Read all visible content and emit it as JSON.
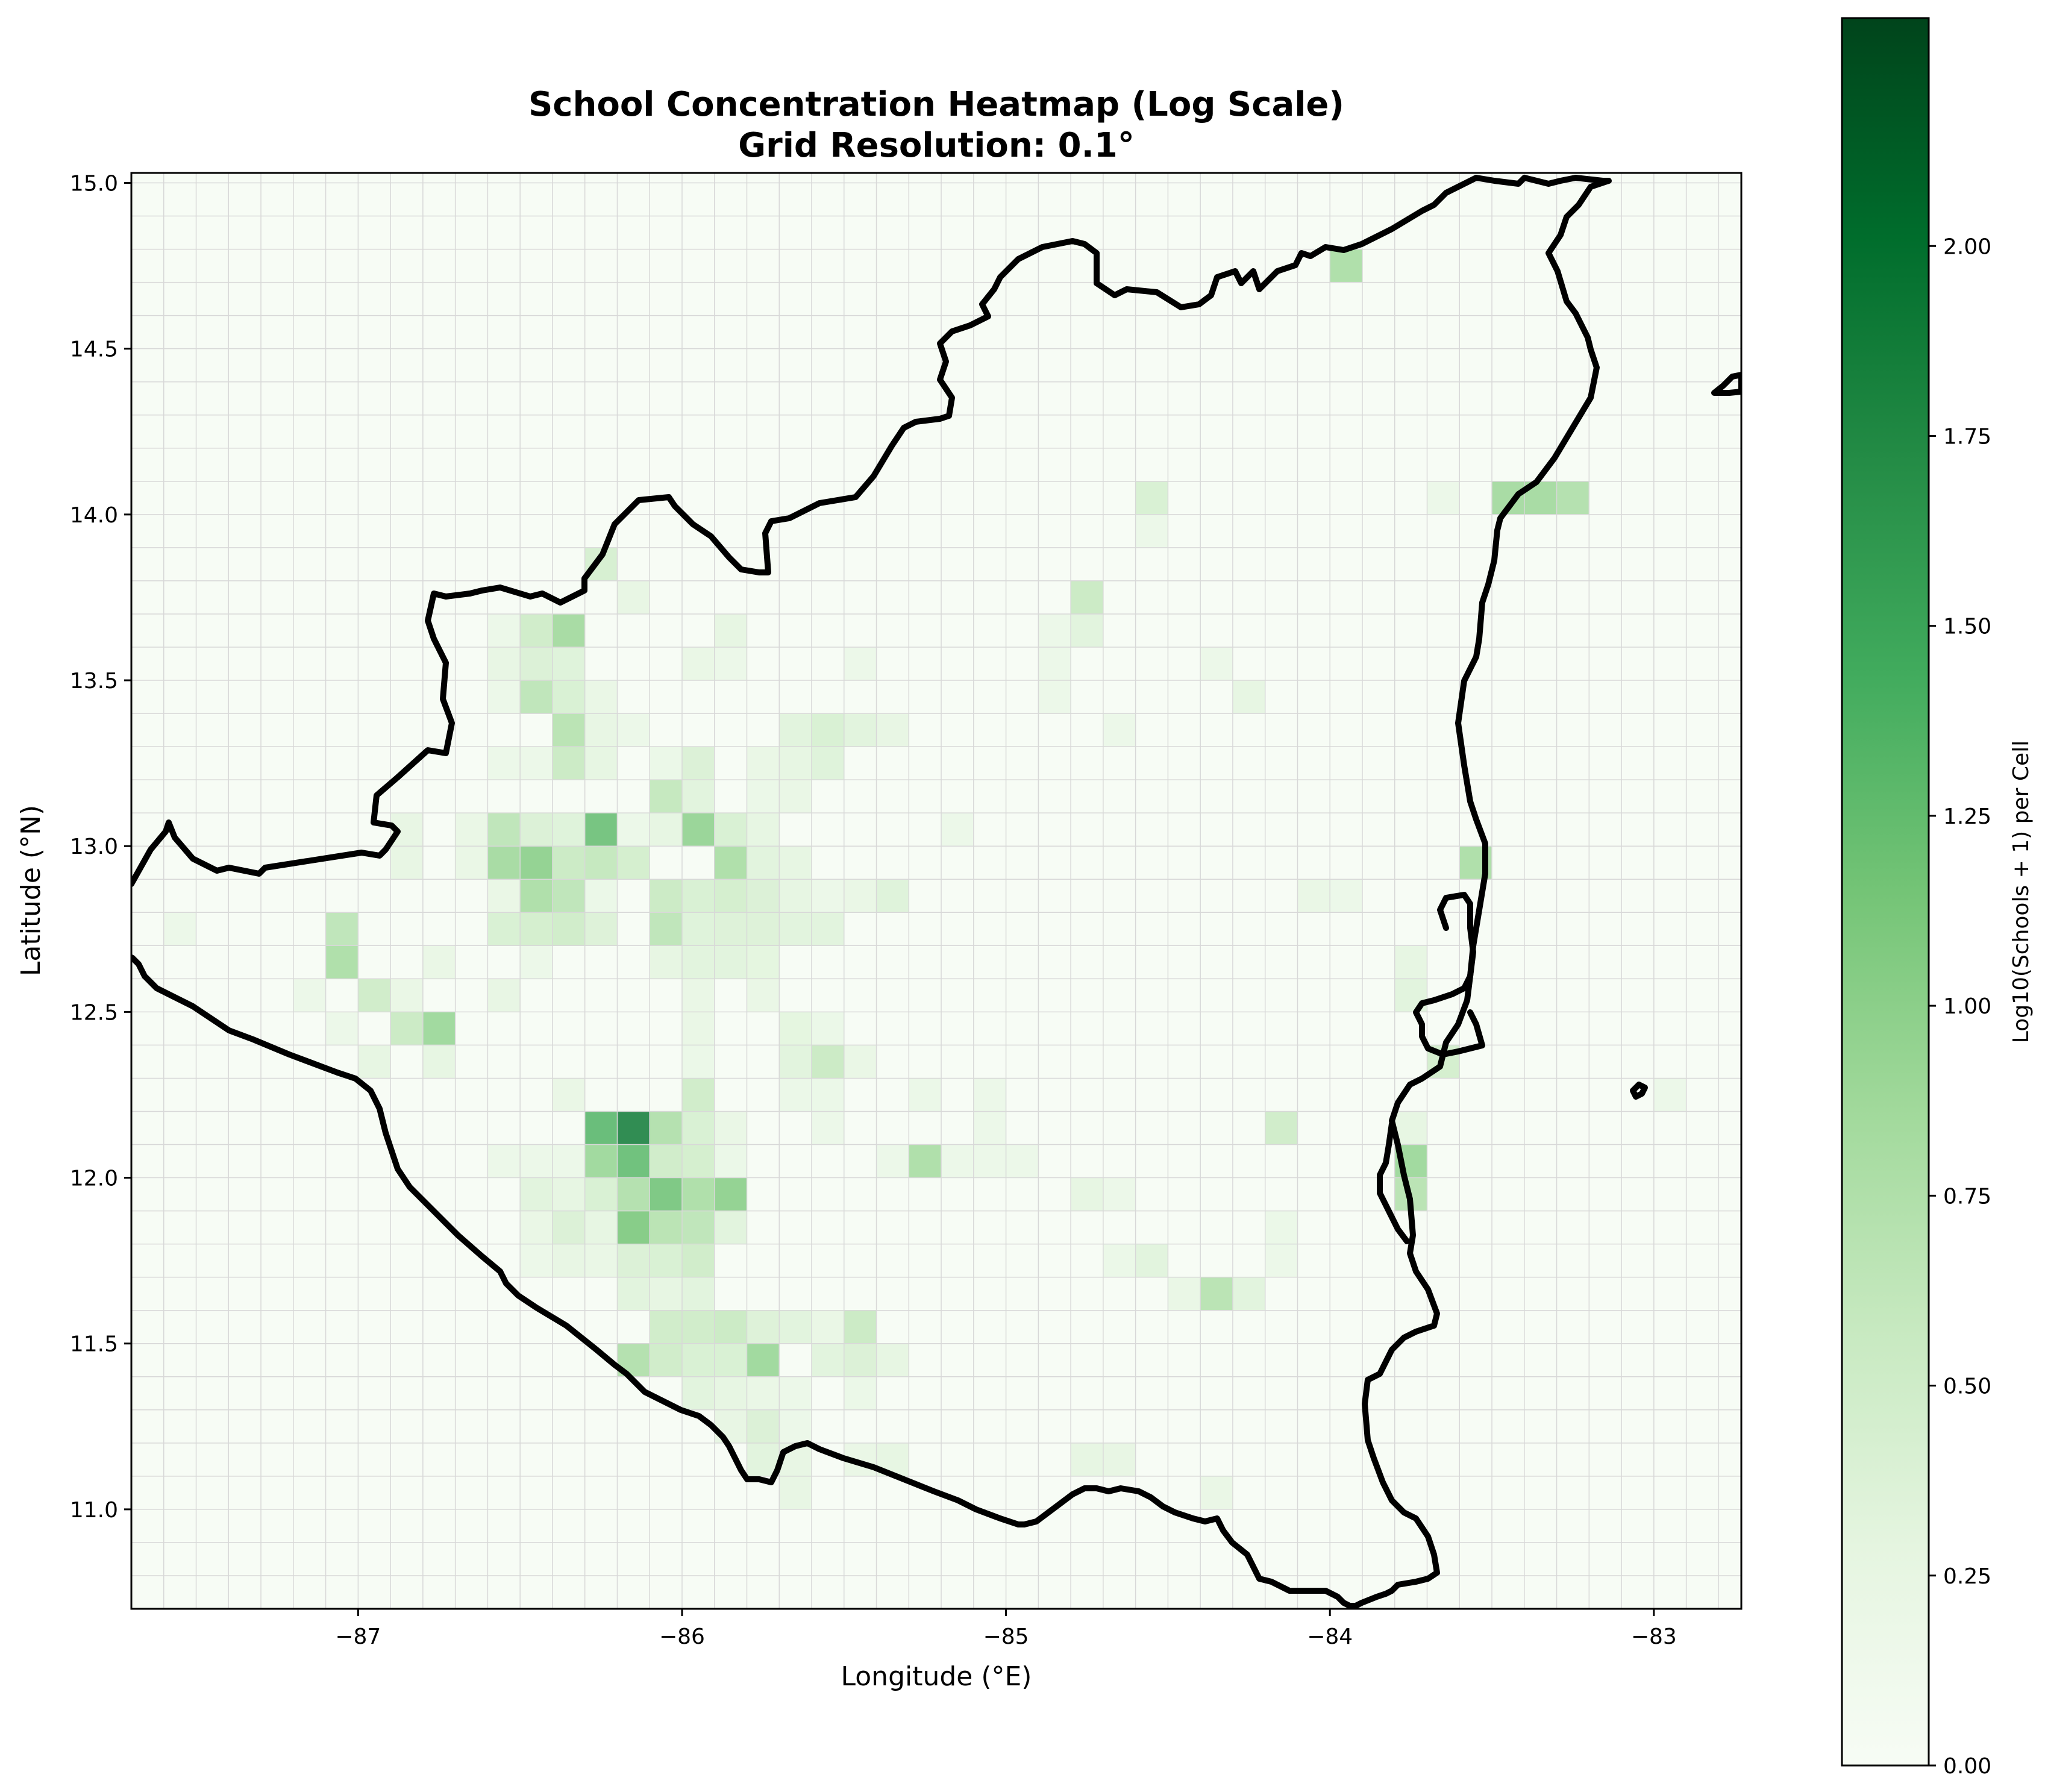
{
  "chart_data": {
    "type": "heatmap",
    "title": "School Concentration Heatmap (Log Scale)",
    "subtitle": "Grid Resolution: 0.1°",
    "xlabel": "Longitude (°E)",
    "ylabel": "Latitude (°N)",
    "xlim": [
      -87.7,
      -82.73
    ],
    "ylim": [
      10.7,
      15.03
    ],
    "x_ticks": [
      -87,
      -86,
      -85,
      -84,
      -83
    ],
    "x_tick_labels": [
      "−87",
      "−86",
      "−85",
      "−84",
      "−83"
    ],
    "y_ticks": [
      11.0,
      11.5,
      12.0,
      12.5,
      13.0,
      13.5,
      14.0,
      14.5,
      15.0
    ],
    "y_tick_labels": [
      "11.0",
      "11.5",
      "12.0",
      "12.5",
      "13.0",
      "13.5",
      "14.0",
      "14.5",
      "15.0"
    ],
    "grid": true,
    "grid_resolution_deg": 0.1,
    "colormap": "Greens",
    "colorbar": {
      "label": "Log10(Schools + 1) per Cell",
      "vmin": 0.0,
      "vmax": 2.3,
      "ticks": [
        0.0,
        0.25,
        0.5,
        0.75,
        1.0,
        1.25,
        1.5,
        1.75,
        2.0
      ],
      "tick_labels": [
        "0.00",
        "0.25",
        "0.50",
        "0.75",
        "1.00",
        "1.25",
        "1.50",
        "1.75",
        "2.00"
      ]
    },
    "cells_note": "each cell: [lon_min, lat_min, log10(schools+1)] for a 0.1 degree cell",
    "cells": [
      [
        -86.3,
        13.8,
        0.48
      ],
      [
        -86.2,
        13.7,
        0.28
      ],
      [
        -86.6,
        13.6,
        0.2
      ],
      [
        -86.5,
        13.6,
        0.55
      ],
      [
        -86.4,
        13.6,
        0.9
      ],
      [
        -85.9,
        13.6,
        0.3
      ],
      [
        -86.6,
        13.5,
        0.28
      ],
      [
        -86.5,
        13.5,
        0.42
      ],
      [
        -86.4,
        13.5,
        0.38
      ],
      [
        -86.0,
        13.5,
        0.25
      ],
      [
        -85.9,
        13.5,
        0.2
      ],
      [
        -85.5,
        13.5,
        0.2
      ],
      [
        -86.6,
        13.4,
        0.2
      ],
      [
        -86.5,
        13.4,
        0.7
      ],
      [
        -86.4,
        13.4,
        0.45
      ],
      [
        -86.3,
        13.4,
        0.25
      ],
      [
        -86.4,
        13.3,
        0.75
      ],
      [
        -86.3,
        13.3,
        0.28
      ],
      [
        -86.2,
        13.3,
        0.2
      ],
      [
        -85.7,
        13.3,
        0.35
      ],
      [
        -85.6,
        13.3,
        0.45
      ],
      [
        -85.5,
        13.3,
        0.35
      ],
      [
        -85.4,
        13.3,
        0.28
      ],
      [
        -86.6,
        13.2,
        0.2
      ],
      [
        -86.5,
        13.2,
        0.2
      ],
      [
        -86.4,
        13.2,
        0.6
      ],
      [
        -86.3,
        13.2,
        0.3
      ],
      [
        -86.1,
        13.2,
        0.22
      ],
      [
        -86.0,
        13.2,
        0.42
      ],
      [
        -85.8,
        13.2,
        0.25
      ],
      [
        -85.7,
        13.2,
        0.3
      ],
      [
        -85.6,
        13.2,
        0.38
      ],
      [
        -86.1,
        13.1,
        0.65
      ],
      [
        -86.0,
        13.1,
        0.35
      ],
      [
        -85.8,
        13.1,
        0.22
      ],
      [
        -85.7,
        13.1,
        0.25
      ],
      [
        -86.9,
        13.0,
        0.28
      ],
      [
        -86.7,
        13.0,
        0.25
      ],
      [
        -86.6,
        13.0,
        0.7
      ],
      [
        -86.5,
        13.0,
        0.42
      ],
      [
        -86.4,
        13.0,
        0.38
      ],
      [
        -86.3,
        13.0,
        1.25
      ],
      [
        -86.2,
        13.0,
        0.2
      ],
      [
        -86.1,
        13.0,
        0.3
      ],
      [
        -86.0,
        13.0,
        1.0
      ],
      [
        -85.9,
        13.0,
        0.45
      ],
      [
        -85.8,
        13.0,
        0.3
      ],
      [
        -85.2,
        13.0,
        0.2
      ],
      [
        -86.9,
        12.9,
        0.28
      ],
      [
        -86.7,
        12.9,
        0.25
      ],
      [
        -86.6,
        12.9,
        0.9
      ],
      [
        -86.5,
        12.9,
        1.05
      ],
      [
        -86.4,
        12.9,
        0.6
      ],
      [
        -86.3,
        12.9,
        0.65
      ],
      [
        -86.2,
        12.9,
        0.5
      ],
      [
        -85.9,
        12.9,
        0.85
      ],
      [
        -85.8,
        12.9,
        0.35
      ],
      [
        -85.7,
        12.9,
        0.3
      ],
      [
        -83.6,
        12.9,
        0.85
      ],
      [
        -86.6,
        12.8,
        0.25
      ],
      [
        -86.5,
        12.8,
        0.85
      ],
      [
        -86.4,
        12.8,
        0.7
      ],
      [
        -86.3,
        12.8,
        0.22
      ],
      [
        -86.1,
        12.8,
        0.6
      ],
      [
        -86.0,
        12.8,
        0.45
      ],
      [
        -85.9,
        12.8,
        0.5
      ],
      [
        -85.8,
        12.8,
        0.42
      ],
      [
        -85.7,
        12.8,
        0.3
      ],
      [
        -85.6,
        12.8,
        0.2
      ],
      [
        -85.5,
        12.8,
        0.25
      ],
      [
        -85.4,
        12.8,
        0.38
      ],
      [
        -84.1,
        12.8,
        0.25
      ],
      [
        -84.0,
        12.8,
        0.2
      ],
      [
        -87.6,
        12.7,
        0.2
      ],
      [
        -87.1,
        12.7,
        0.7
      ],
      [
        -86.6,
        12.7,
        0.45
      ],
      [
        -86.5,
        12.7,
        0.5
      ],
      [
        -86.4,
        12.7,
        0.55
      ],
      [
        -86.3,
        12.7,
        0.4
      ],
      [
        -86.1,
        12.7,
        0.7
      ],
      [
        -86.0,
        12.7,
        0.38
      ],
      [
        -85.9,
        12.7,
        0.4
      ],
      [
        -85.8,
        12.7,
        0.4
      ],
      [
        -85.7,
        12.7,
        0.35
      ],
      [
        -85.6,
        12.7,
        0.35
      ],
      [
        -87.1,
        12.6,
        0.85
      ],
      [
        -86.8,
        12.6,
        0.25
      ],
      [
        -86.5,
        12.6,
        0.2
      ],
      [
        -86.1,
        12.6,
        0.3
      ],
      [
        -86.0,
        12.6,
        0.35
      ],
      [
        -85.9,
        12.6,
        0.35
      ],
      [
        -85.8,
        12.6,
        0.32
      ],
      [
        -83.8,
        12.6,
        0.3
      ],
      [
        -87.2,
        12.5,
        0.2
      ],
      [
        -87.0,
        12.5,
        0.55
      ],
      [
        -86.9,
        12.5,
        0.25
      ],
      [
        -86.6,
        12.5,
        0.28
      ],
      [
        -86.0,
        12.5,
        0.25
      ],
      [
        -85.8,
        12.5,
        0.25
      ],
      [
        -83.8,
        12.5,
        0.35
      ],
      [
        -87.1,
        12.4,
        0.2
      ],
      [
        -86.9,
        12.4,
        0.6
      ],
      [
        -86.8,
        12.4,
        0.95
      ],
      [
        -86.0,
        12.4,
        0.25
      ],
      [
        -85.7,
        12.4,
        0.32
      ],
      [
        -85.6,
        12.4,
        0.22
      ],
      [
        -87.0,
        12.3,
        0.3
      ],
      [
        -86.8,
        12.3,
        0.3
      ],
      [
        -86.0,
        12.3,
        0.22
      ],
      [
        -85.7,
        12.3,
        0.35
      ],
      [
        -85.6,
        12.3,
        0.6
      ],
      [
        -85.5,
        12.3,
        0.25
      ],
      [
        -83.7,
        12.3,
        0.5
      ],
      [
        -86.4,
        12.2,
        0.25
      ],
      [
        -86.0,
        12.2,
        0.55
      ],
      [
        -85.7,
        12.2,
        0.22
      ],
      [
        -85.6,
        12.2,
        0.22
      ],
      [
        -85.3,
        12.2,
        0.22
      ],
      [
        -85.1,
        12.2,
        0.2
      ],
      [
        -83.0,
        12.2,
        0.2
      ],
      [
        -86.3,
        12.1,
        1.35
      ],
      [
        -86.2,
        12.1,
        1.9
      ],
      [
        -86.1,
        12.1,
        0.8
      ],
      [
        -86.0,
        12.1,
        0.45
      ],
      [
        -85.9,
        12.1,
        0.25
      ],
      [
        -85.6,
        12.1,
        0.2
      ],
      [
        -85.1,
        12.1,
        0.2
      ],
      [
        -84.2,
        12.1,
        0.55
      ],
      [
        -83.8,
        12.1,
        0.3
      ],
      [
        -86.6,
        12.0,
        0.2
      ],
      [
        -86.5,
        12.0,
        0.2
      ],
      [
        -86.4,
        12.0,
        0.2
      ],
      [
        -86.3,
        12.0,
        0.95
      ],
      [
        -86.2,
        12.0,
        1.3
      ],
      [
        -86.1,
        12.0,
        0.55
      ],
      [
        -86.0,
        12.0,
        0.5
      ],
      [
        -85.9,
        12.0,
        0.22
      ],
      [
        -85.4,
        12.0,
        0.2
      ],
      [
        -85.3,
        12.0,
        0.85
      ],
      [
        -85.2,
        12.0,
        0.2
      ],
      [
        -85.1,
        12.0,
        0.2
      ],
      [
        -85.0,
        12.0,
        0.2
      ],
      [
        -83.8,
        12.0,
        0.95
      ],
      [
        -86.5,
        11.9,
        0.35
      ],
      [
        -86.4,
        11.9,
        0.3
      ],
      [
        -86.3,
        11.9,
        0.45
      ],
      [
        -86.2,
        11.9,
        0.8
      ],
      [
        -86.1,
        11.9,
        1.2
      ],
      [
        -86.0,
        11.9,
        0.85
      ],
      [
        -85.9,
        11.9,
        1.05
      ],
      [
        -84.8,
        11.9,
        0.3
      ],
      [
        -84.7,
        11.9,
        0.2
      ],
      [
        -83.8,
        11.9,
        0.75
      ],
      [
        -86.5,
        11.8,
        0.25
      ],
      [
        -86.4,
        11.8,
        0.42
      ],
      [
        -86.3,
        11.8,
        0.3
      ],
      [
        -86.2,
        11.8,
        1.15
      ],
      [
        -86.1,
        11.8,
        0.75
      ],
      [
        -86.0,
        11.8,
        0.7
      ],
      [
        -85.9,
        11.8,
        0.35
      ],
      [
        -84.2,
        11.8,
        0.22
      ],
      [
        -86.5,
        11.7,
        0.2
      ],
      [
        -86.4,
        11.7,
        0.28
      ],
      [
        -86.3,
        11.7,
        0.25
      ],
      [
        -86.2,
        11.7,
        0.42
      ],
      [
        -86.1,
        11.7,
        0.45
      ],
      [
        -86.0,
        11.7,
        0.55
      ],
      [
        -84.7,
        11.7,
        0.22
      ],
      [
        -84.6,
        11.7,
        0.35
      ],
      [
        -84.2,
        11.7,
        0.2
      ],
      [
        -86.2,
        11.6,
        0.35
      ],
      [
        -86.1,
        11.6,
        0.3
      ],
      [
        -86.0,
        11.6,
        0.35
      ],
      [
        -84.5,
        11.6,
        0.25
      ],
      [
        -84.4,
        11.6,
        0.75
      ],
      [
        -84.3,
        11.6,
        0.35
      ],
      [
        -86.1,
        11.5,
        0.55
      ],
      [
        -86.0,
        11.5,
        0.55
      ],
      [
        -85.9,
        11.5,
        0.6
      ],
      [
        -85.8,
        11.5,
        0.4
      ],
      [
        -85.7,
        11.5,
        0.35
      ],
      [
        -85.6,
        11.5,
        0.25
      ],
      [
        -85.5,
        11.5,
        0.6
      ],
      [
        -86.2,
        11.4,
        0.8
      ],
      [
        -86.1,
        11.4,
        0.55
      ],
      [
        -86.0,
        11.4,
        0.45
      ],
      [
        -85.9,
        11.4,
        0.45
      ],
      [
        -85.8,
        11.4,
        0.95
      ],
      [
        -85.6,
        11.4,
        0.35
      ],
      [
        -85.5,
        11.4,
        0.42
      ],
      [
        -85.4,
        11.4,
        0.3
      ],
      [
        -86.0,
        11.3,
        0.35
      ],
      [
        -85.9,
        11.3,
        0.3
      ],
      [
        -85.8,
        11.3,
        0.25
      ],
      [
        -85.7,
        11.3,
        0.2
      ],
      [
        -85.5,
        11.3,
        0.22
      ],
      [
        -85.9,
        11.2,
        0.28
      ],
      [
        -85.8,
        11.2,
        0.42
      ],
      [
        -85.7,
        11.2,
        0.2
      ],
      [
        -85.8,
        11.1,
        0.35
      ],
      [
        -85.7,
        11.1,
        0.28
      ],
      [
        -85.5,
        11.1,
        0.25
      ],
      [
        -85.4,
        11.1,
        0.3
      ],
      [
        -84.8,
        11.1,
        0.3
      ],
      [
        -84.7,
        11.1,
        0.28
      ],
      [
        -85.7,
        11.0,
        0.28
      ],
      [
        -84.4,
        11.0,
        0.25
      ],
      [
        -84.6,
        14.0,
        0.45
      ],
      [
        -84.6,
        13.9,
        0.2
      ],
      [
        -84.8,
        13.7,
        0.6
      ],
      [
        -84.8,
        13.6,
        0.35
      ],
      [
        -84.9,
        13.6,
        0.2
      ],
      [
        -84.9,
        13.5,
        0.2
      ],
      [
        -84.9,
        13.4,
        0.2
      ],
      [
        -84.4,
        13.5,
        0.2
      ],
      [
        -84.3,
        13.4,
        0.3
      ],
      [
        -84.7,
        13.3,
        0.2
      ],
      [
        -84.0,
        14.7,
        0.85
      ],
      [
        -83.7,
        14.0,
        0.2
      ],
      [
        -83.5,
        14.0,
        0.9
      ],
      [
        -83.4,
        14.0,
        0.9
      ],
      [
        -83.3,
        14.0,
        0.8
      ]
    ]
  }
}
